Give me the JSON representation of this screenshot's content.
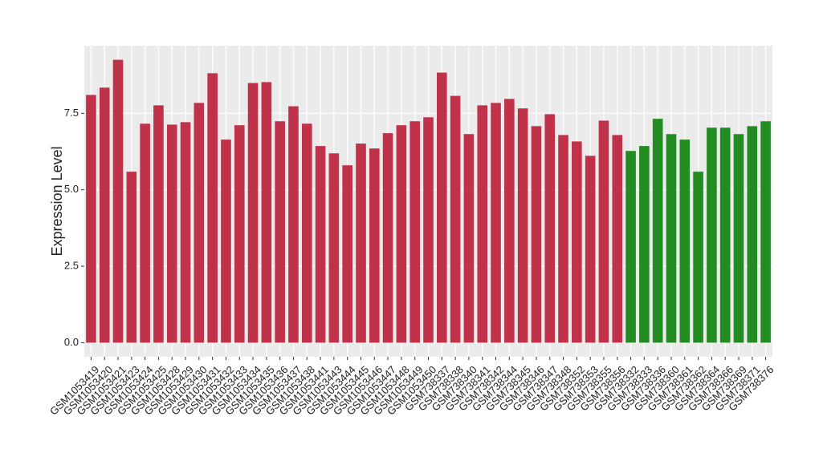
{
  "chart_data": {
    "type": "bar",
    "y_label": "Expression Level",
    "categories": [
      "GSM1053419",
      "GSM1053420",
      "GSM1053421",
      "GSM1053423",
      "GSM1053424",
      "GSM1053425",
      "GSM1053428",
      "GSM1053429",
      "GSM1053430",
      "GSM1053431",
      "GSM1053432",
      "GSM1053433",
      "GSM1053434",
      "GSM1053435",
      "GSM1053436",
      "GSM1053437",
      "GSM1053438",
      "GSM1053441",
      "GSM1053443",
      "GSM1053444",
      "GSM1053445",
      "GSM1053446",
      "GSM1053447",
      "GSM1053448",
      "GSM1053449",
      "GSM1053450",
      "GSM738337",
      "GSM738338",
      "GSM738340",
      "GSM738341",
      "GSM738342",
      "GSM738344",
      "GSM738345",
      "GSM738346",
      "GSM738347",
      "GSM738348",
      "GSM738352",
      "GSM738353",
      "GSM738355",
      "GSM738356",
      "GSM738332",
      "GSM738333",
      "GSM738336",
      "GSM738360",
      "GSM738361",
      "GSM738362",
      "GSM738364",
      "GSM738366",
      "GSM738369",
      "GSM738371",
      "GSM738376"
    ],
    "values": [
      8.1,
      8.34,
      9.25,
      5.59,
      7.16,
      7.76,
      7.13,
      7.21,
      7.84,
      8.81,
      6.64,
      7.11,
      8.49,
      8.52,
      7.24,
      7.73,
      7.16,
      6.43,
      6.19,
      5.8,
      6.51,
      6.35,
      6.85,
      7.11,
      7.24,
      7.37,
      8.83,
      8.07,
      6.82,
      7.76,
      7.84,
      7.97,
      7.66,
      7.08,
      7.47,
      6.79,
      6.58,
      6.11,
      7.26,
      6.79,
      6.27,
      6.43,
      7.32,
      6.82,
      6.64,
      5.59,
      7.03,
      7.03,
      6.82,
      7.08,
      7.24
    ],
    "colors": [
      "#c0314a",
      "#c0314a",
      "#c0314a",
      "#c0314a",
      "#c0314a",
      "#c0314a",
      "#c0314a",
      "#c0314a",
      "#c0314a",
      "#c0314a",
      "#c0314a",
      "#c0314a",
      "#c0314a",
      "#c0314a",
      "#c0314a",
      "#c0314a",
      "#c0314a",
      "#c0314a",
      "#c0314a",
      "#c0314a",
      "#c0314a",
      "#c0314a",
      "#c0314a",
      "#c0314a",
      "#c0314a",
      "#c0314a",
      "#c0314a",
      "#c0314a",
      "#c0314a",
      "#c0314a",
      "#c0314a",
      "#c0314a",
      "#c0314a",
      "#c0314a",
      "#c0314a",
      "#c0314a",
      "#c0314a",
      "#c0314a",
      "#c0314a",
      "#c0314a",
      "#228b22",
      "#228b22",
      "#228b22",
      "#228b22",
      "#228b22",
      "#228b22",
      "#228b22",
      "#228b22",
      "#228b22",
      "#228b22",
      "#228b22"
    ],
    "ylim": [
      -0.46,
      9.71
    ],
    "yticks": [
      {
        "value": 0,
        "label": "0.0"
      },
      {
        "value": 2.5,
        "label": "2.5"
      },
      {
        "value": 5,
        "label": "5.0"
      },
      {
        "value": 7.5,
        "label": "7.5"
      }
    ],
    "grid": true
  }
}
